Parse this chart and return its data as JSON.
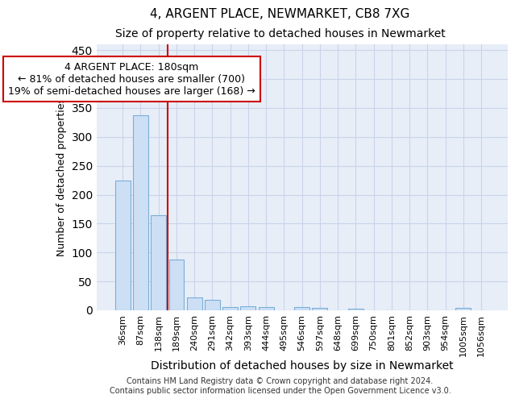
{
  "title1": "4, ARGENT PLACE, NEWMARKET, CB8 7XG",
  "title2": "Size of property relative to detached houses in Newmarket",
  "xlabel": "Distribution of detached houses by size in Newmarket",
  "ylabel": "Number of detached properties",
  "categories": [
    "36sqm",
    "87sqm",
    "138sqm",
    "189sqm",
    "240sqm",
    "291sqm",
    "342sqm",
    "393sqm",
    "444sqm",
    "495sqm",
    "546sqm",
    "597sqm",
    "648sqm",
    "699sqm",
    "750sqm",
    "801sqm",
    "852sqm",
    "903sqm",
    "954sqm",
    "1005sqm",
    "1056sqm"
  ],
  "values": [
    225,
    338,
    165,
    88,
    23,
    18,
    6,
    7,
    5,
    0,
    5,
    4,
    0,
    3,
    0,
    0,
    0,
    0,
    0,
    4,
    0
  ],
  "bar_color": "#ccdff5",
  "bar_edge_color": "#7aaed6",
  "bar_width": 0.85,
  "red_line_x": 3.0,
  "annotation_line1": "4 ARGENT PLACE: 180sqm",
  "annotation_line2": "← 81% of detached houses are smaller (700)",
  "annotation_line3": "19% of semi-detached houses are larger (168) →",
  "annotation_box_color": "#ffffff",
  "annotation_box_edge_color": "#cc0000",
  "ylim": [
    0,
    460
  ],
  "yticks": [
    0,
    50,
    100,
    150,
    200,
    250,
    300,
    350,
    400,
    450
  ],
  "footnote1": "Contains HM Land Registry data © Crown copyright and database right 2024.",
  "footnote2": "Contains public sector information licensed under the Open Government Licence v3.0.",
  "grid_color": "#c8d4e8",
  "background_color": "#e8eef8",
  "title1_fontsize": 11,
  "title2_fontsize": 10,
  "ylabel_fontsize": 9,
  "xlabel_fontsize": 10,
  "tick_fontsize": 8,
  "annot_fontsize": 9,
  "footnote_fontsize": 7
}
